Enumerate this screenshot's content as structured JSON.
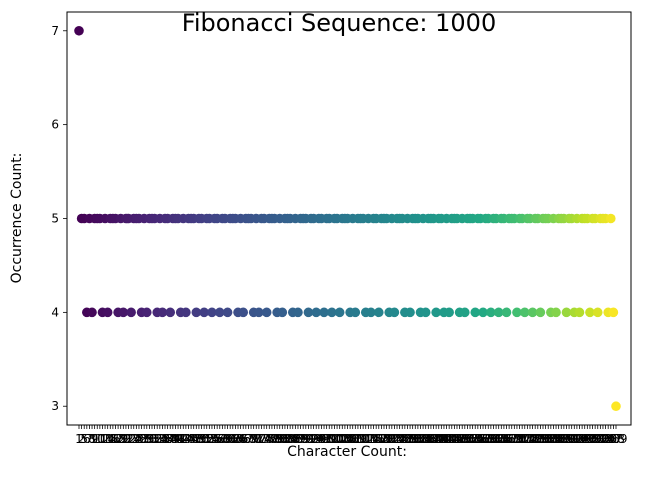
{
  "chart_data": {
    "type": "scatter",
    "title": "Fibonacci Sequence: 1000",
    "xlabel": "Character Count:",
    "ylabel": "Occurrence Count:",
    "ylim": [
      2.8,
      7.2
    ],
    "yticks": [
      "3",
      "4",
      "5",
      "6",
      "7"
    ],
    "grid": false,
    "colormap": "viridis",
    "x_categories": [
      "1",
      "2",
      "5",
      "6",
      "7",
      "8",
      "9",
      "10",
      "11",
      "12",
      "13",
      "14",
      "15",
      "16",
      "17",
      "18",
      "19",
      "20",
      "21",
      "22",
      "23",
      "24",
      "25",
      "26",
      "27",
      "28",
      "29",
      "30",
      "31",
      "32",
      "33",
      "34",
      "35",
      "36",
      "37",
      "38",
      "39",
      "40",
      "41",
      "42",
      "43",
      "44",
      "45",
      "46",
      "47",
      "48",
      "49",
      "50",
      "51",
      "52",
      "53",
      "54",
      "55",
      "56",
      "57",
      "58",
      "59",
      "60",
      "61",
      "62",
      "63",
      "64",
      "65",
      "66",
      "67",
      "68",
      "69",
      "70",
      "71",
      "72",
      "73",
      "74",
      "75",
      "76",
      "77",
      "78",
      "79",
      "80",
      "81",
      "82",
      "83",
      "84",
      "85",
      "86",
      "87",
      "88",
      "89",
      "90",
      "91",
      "92",
      "93",
      "94",
      "95",
      "96",
      "97",
      "98",
      "99",
      "100",
      "101",
      "102",
      "103",
      "104",
      "105",
      "106",
      "107",
      "108",
      "109",
      "110",
      "111",
      "112",
      "113",
      "114",
      "115",
      "116",
      "117",
      "118",
      "119",
      "120",
      "121",
      "122",
      "123",
      "124",
      "125",
      "126",
      "127",
      "128",
      "129",
      "130",
      "131",
      "132",
      "133",
      "134",
      "135",
      "136",
      "137",
      "138",
      "139",
      "140",
      "141",
      "142",
      "143",
      "144",
      "145",
      "146",
      "147",
      "148",
      "149",
      "150",
      "151",
      "152",
      "153",
      "154",
      "155",
      "156",
      "157",
      "158",
      "159",
      "160",
      "161",
      "162",
      "163",
      "164",
      "165",
      "166",
      "167",
      "168",
      "169",
      "170",
      "171",
      "172",
      "173",
      "174",
      "175",
      "176",
      "177",
      "178",
      "179",
      "180",
      "181",
      "182",
      "183",
      "184",
      "185",
      "186",
      "187",
      "188",
      "189",
      "190",
      "191",
      "192",
      "193",
      "194",
      "195",
      "196",
      "197",
      "198",
      "199",
      "200",
      "201",
      "202",
      "203",
      "204",
      "205",
      "206",
      "207",
      "208",
      "209"
    ],
    "points_note_free_values": {
      "y_value_7": [
        "1"
      ],
      "y_value_3": [
        "209"
      ],
      "y_value_4": [
        "6",
        "8",
        "12",
        "14",
        "18",
        "20",
        "23",
        "27",
        "29",
        "33",
        "35",
        "38",
        "42",
        "44",
        "48",
        "51",
        "54",
        "57",
        "60",
        "64",
        "66",
        "70",
        "72",
        "75",
        "79",
        "81",
        "85",
        "87",
        "91",
        "94",
        "97",
        "100",
        "103",
        "107",
        "109",
        "113",
        "115",
        "118",
        "122",
        "124",
        "128",
        "130",
        "134",
        "136",
        "140",
        "143",
        "145",
        "149",
        "151",
        "155",
        "158",
        "161",
        "164",
        "167",
        "171",
        "174",
        "177",
        "180",
        "184",
        "186",
        "190",
        "193",
        "195",
        "199",
        "202",
        "206",
        "208"
      ]
    },
    "default_y": 5
  }
}
